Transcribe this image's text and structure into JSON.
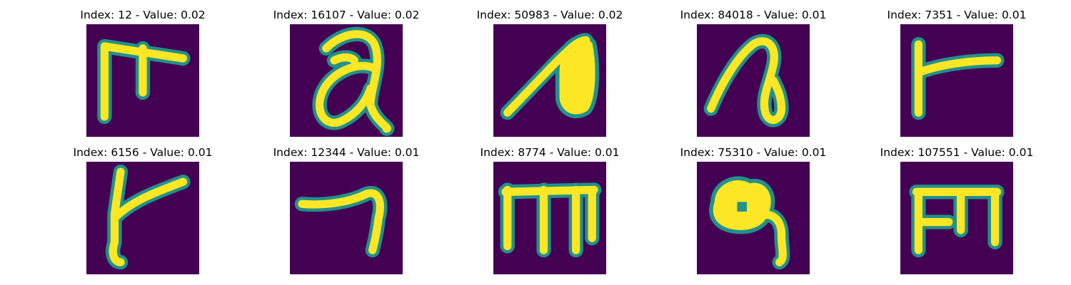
{
  "panels": [
    {
      "title": "Index: 12 - Value: 0.02",
      "glyph": "hook-t"
    },
    {
      "title": "Index: 16107 - Value: 0.02",
      "glyph": "looped-a"
    },
    {
      "title": "Index: 50983 - Value: 0.02",
      "glyph": "filled-leaf"
    },
    {
      "title": "Index: 84018 - Value: 0.01",
      "glyph": "hook-loop"
    },
    {
      "title": "Index: 7351 - Value: 0.01",
      "glyph": "l-stroke"
    },
    {
      "title": "Index: 6156 - Value: 0.01",
      "glyph": "y-stroke"
    },
    {
      "title": "Index: 12344 - Value: 0.01",
      "glyph": "seven-stroke"
    },
    {
      "title": "Index: 8774 - Value: 0.01",
      "glyph": "m-stroke"
    },
    {
      "title": "Index: 75310 - Value: 0.01",
      "glyph": "blob-loop"
    },
    {
      "title": "Index: 107551 - Value: 0.01",
      "glyph": "m-short"
    }
  ],
  "colors": {
    "background": "#440154",
    "edge": "#21918c",
    "stroke": "#fde725"
  }
}
